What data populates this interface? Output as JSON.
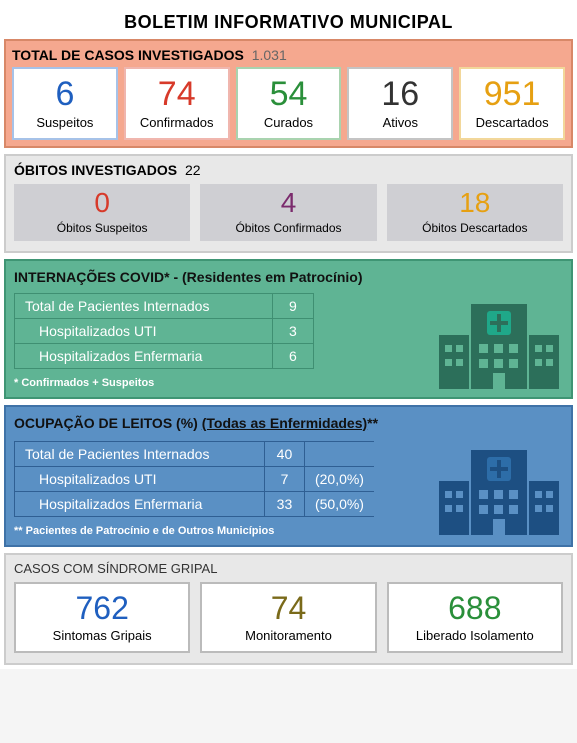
{
  "title": "BOLETIM INFORMATIVO MUNICIPAL",
  "sec1": {
    "header_label": "TOTAL DE CASOS INVESTIGADOS",
    "header_value": "1.031",
    "colors": {
      "bg": "#f5a88f",
      "border": "#d88868"
    },
    "cards": [
      {
        "value": "6",
        "label": "Suspeitos",
        "color": "#1f5fbf",
        "border": "#a6c2e8"
      },
      {
        "value": "74",
        "label": "Confirmados",
        "color": "#d73a2a",
        "border": "#f0b6ae"
      },
      {
        "value": "54",
        "label": "Curados",
        "color": "#2a8f3a",
        "border": "#a9d3af"
      },
      {
        "value": "16",
        "label": "Ativos",
        "color": "#333333",
        "border": "#c4c4c4"
      },
      {
        "value": "951",
        "label": "Descartados",
        "color": "#e6a012",
        "border": "#f2d79a"
      }
    ]
  },
  "sec2": {
    "header_label": "ÓBITOS INVESTIGADOS",
    "header_value": "22",
    "cards": [
      {
        "value": "0",
        "label": "Óbitos Suspeitos",
        "color": "#d73a2a"
      },
      {
        "value": "4",
        "label": "Óbitos Confirmados",
        "color": "#7b2b6d"
      },
      {
        "value": "18",
        "label": "Óbitos Descartados",
        "color": "#e6a012"
      }
    ]
  },
  "sec3": {
    "header_prefix": "INTERNAÇÕES COVID*",
    "header_suffix": " - (Residentes em Patrocínio)",
    "rows": [
      {
        "label": "Total de Pacientes Internados",
        "value": "9",
        "indent": false
      },
      {
        "label": "Hospitalizados UTI",
        "value": "3",
        "indent": true
      },
      {
        "label": "Hospitalizados Enfermaria",
        "value": "6",
        "indent": true
      }
    ],
    "note": "* Confirmados + Suspeitos",
    "colors": {
      "bg": "#5fb494",
      "icon": "#2c6f5a",
      "cross_bg": "#1fa889"
    }
  },
  "sec4": {
    "header_prefix": "OCUPAÇÃO DE LEITOS (%) ",
    "header_underlined": "(Todas as Enfermidades)",
    "header_suffix": "**",
    "rows": [
      {
        "label": "Total de Pacientes Internados",
        "value": "40",
        "pct": "",
        "indent": false
      },
      {
        "label": "Hospitalizados UTI",
        "value": "7",
        "pct": "(20,0%)",
        "indent": true
      },
      {
        "label": "Hospitalizados Enfermaria",
        "value": "33",
        "pct": "(50,0%)",
        "indent": true
      }
    ],
    "note": "** Pacientes de Patrocínio e de Outros Municípios",
    "colors": {
      "bg": "#5a90c4",
      "icon": "#1d4f82"
    }
  },
  "sec5": {
    "header_label": "CASOS COM SÍNDROME GRIPAL",
    "cards": [
      {
        "value": "762",
        "label": "Sintomas Gripais",
        "color": "#1f5fbf"
      },
      {
        "value": "74",
        "label": "Monitoramento",
        "color": "#7a6a1a"
      },
      {
        "value": "688",
        "label": "Liberado Isolamento",
        "color": "#2a8f3a"
      }
    ]
  }
}
